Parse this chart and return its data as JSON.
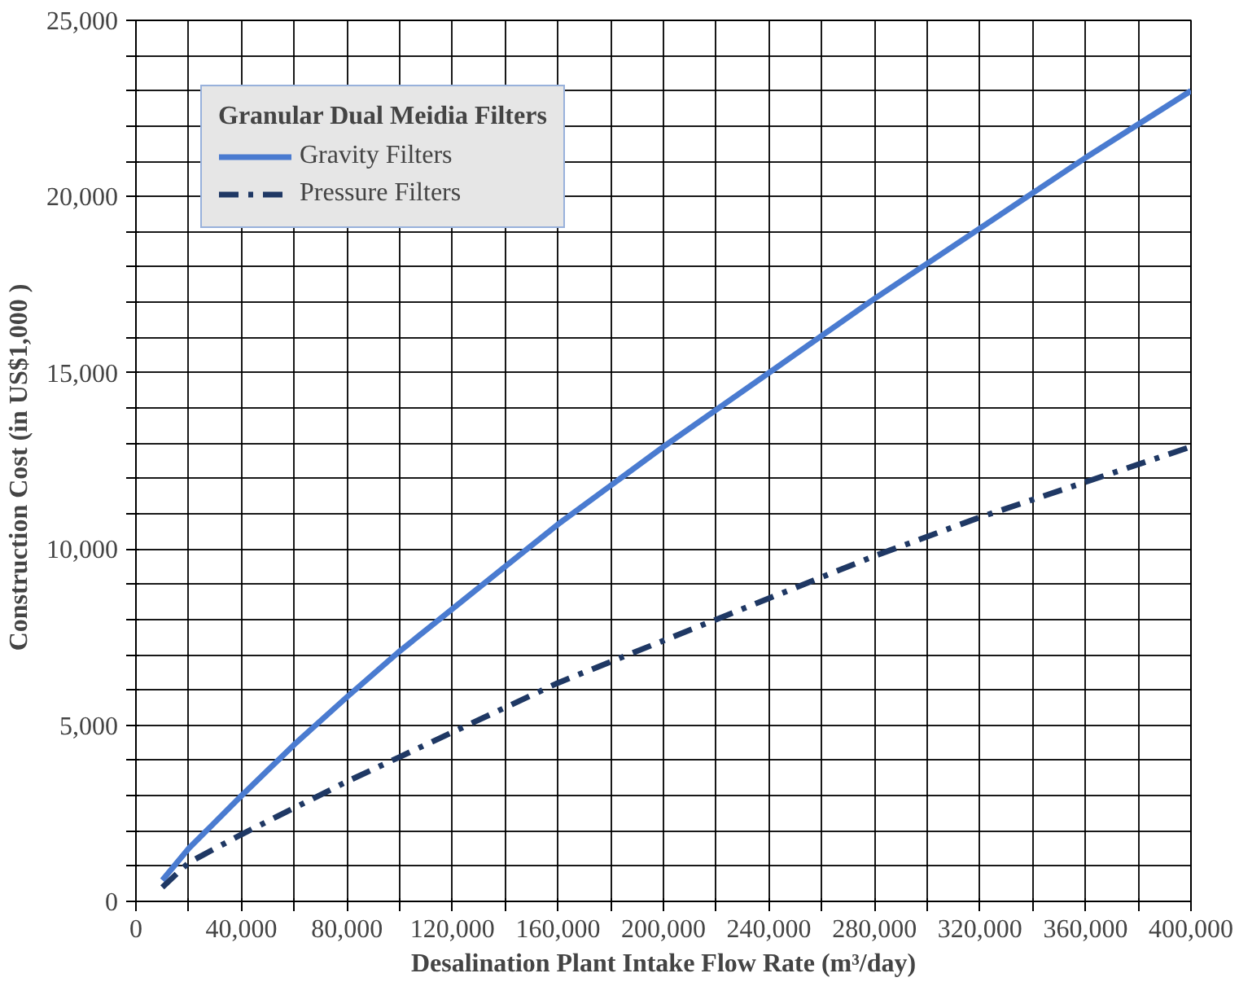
{
  "chart_data": {
    "type": "line",
    "xlabel": "Desalination Plant Intake Flow Rate (m³/day)",
    "ylabel": "Construction Cost  (in  US$1,000 )",
    "legend_title": "Granular Dual Meidia Filters",
    "x": [
      10000,
      20000,
      40000,
      60000,
      80000,
      100000,
      120000,
      140000,
      160000,
      180000,
      200000,
      240000,
      280000,
      320000,
      360000,
      400000
    ],
    "series": [
      {
        "name": "Gravity Filters",
        "color": "#4a7bd0",
        "line_style": "solid",
        "values": [
          600,
          1500,
          3000,
          4450,
          5800,
          7100,
          8300,
          9500,
          10700,
          11800,
          12900,
          15000,
          17100,
          19100,
          21100,
          23000
        ]
      },
      {
        "name": "Pressure Filters",
        "color": "#1f3864",
        "line_style": "dashed",
        "values": [
          400,
          1100,
          1900,
          2650,
          3400,
          4100,
          4800,
          5500,
          6200,
          6800,
          7400,
          8600,
          9800,
          10900,
          11900,
          12900
        ]
      }
    ],
    "xlim": [
      0,
      400000
    ],
    "ylim": [
      0,
      25000
    ],
    "xticks": [
      0,
      {
        "value": 20000,
        "label": null
      },
      {
        "value": 40000,
        "label": "40,000"
      },
      {
        "value": 60000,
        "label": null
      },
      {
        "value": 80000,
        "label": "80,000"
      },
      {
        "value": 100000,
        "label": null
      },
      {
        "value": 120000,
        "label": "120,000"
      },
      {
        "value": 140000,
        "label": null
      },
      {
        "value": 160000,
        "label": "160,000"
      },
      {
        "value": 180000,
        "label": null
      },
      {
        "value": 200000,
        "label": "200,000"
      },
      {
        "value": 220000,
        "label": null
      },
      {
        "value": 240000,
        "label": "240,000"
      },
      {
        "value": 260000,
        "label": null
      },
      {
        "value": 280000,
        "label": "280,000"
      },
      {
        "value": 300000,
        "label": null
      },
      {
        "value": 320000,
        "label": "320,000"
      },
      {
        "value": 340000,
        "label": null
      },
      {
        "value": 360000,
        "label": "360,000"
      },
      {
        "value": 380000,
        "label": null
      },
      {
        "value": 400000,
        "label": "400,000"
      }
    ],
    "yticks": [
      0,
      {
        "value": 1000,
        "label": null
      },
      {
        "value": 2000,
        "label": null
      },
      {
        "value": 3000,
        "label": null
      },
      {
        "value": 4000,
        "label": null
      },
      {
        "value": 5000,
        "label": "5,000"
      },
      {
        "value": 6000,
        "label": null
      },
      {
        "value": 7000,
        "label": null
      },
      {
        "value": 8000,
        "label": null
      },
      {
        "value": 9000,
        "label": null
      },
      {
        "value": 10000,
        "label": "10,000"
      },
      {
        "value": 11000,
        "label": null
      },
      {
        "value": 12000,
        "label": null
      },
      {
        "value": 13000,
        "label": null
      },
      {
        "value": 14000,
        "label": null
      },
      {
        "value": 15000,
        "label": "15,000"
      },
      {
        "value": 16000,
        "label": null
      },
      {
        "value": 17000,
        "label": null
      },
      {
        "value": 18000,
        "label": null
      },
      {
        "value": 19000,
        "label": null
      },
      {
        "value": 20000,
        "label": "20,000"
      },
      {
        "value": 21000,
        "label": null
      },
      {
        "value": 22000,
        "label": null
      },
      {
        "value": 23000,
        "label": null
      },
      {
        "value": 24000,
        "label": null
      },
      {
        "value": 25000,
        "label": "25,000"
      }
    ],
    "grid": true,
    "legend": "top left",
    "marker": "none"
  }
}
